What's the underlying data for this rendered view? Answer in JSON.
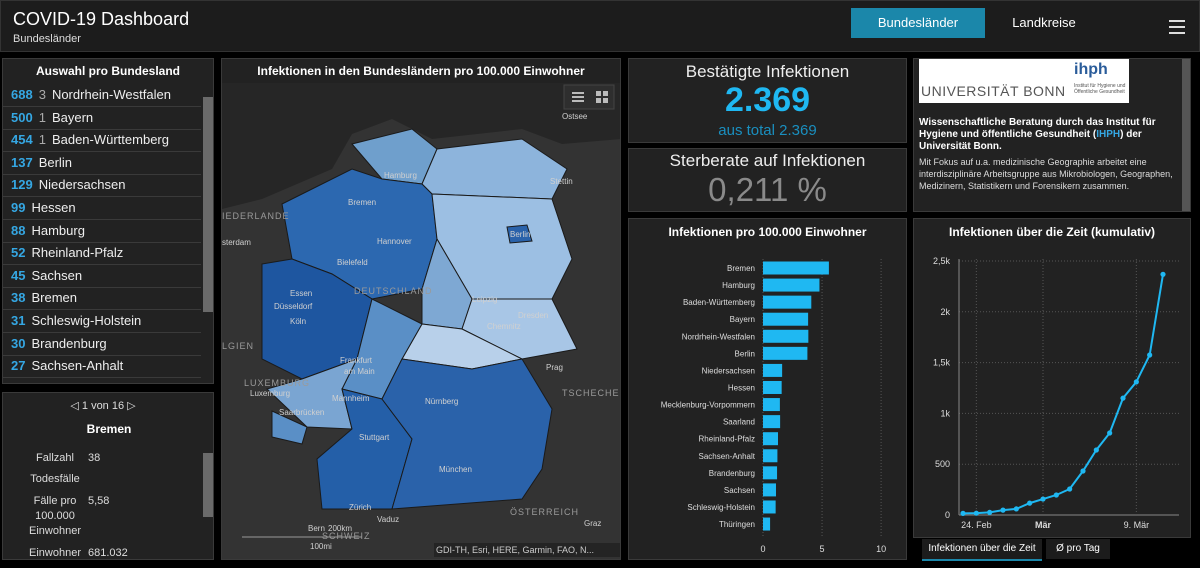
{
  "header": {
    "title": "COVID-19 Dashboard",
    "subtitle": "Bundesländer",
    "tabs": [
      "Bundesländer",
      "Landkreise"
    ]
  },
  "list": {
    "title": "Auswahl pro Bundesland",
    "items": [
      {
        "value": 688,
        "extra": 3,
        "name": "Nordrhein-Westfalen"
      },
      {
        "value": 500,
        "extra": 1,
        "name": "Bayern"
      },
      {
        "value": 454,
        "extra": 1,
        "name": "Baden-Württemberg"
      },
      {
        "value": 137,
        "name": "Berlin"
      },
      {
        "value": 129,
        "name": "Niedersachsen"
      },
      {
        "value": 99,
        "name": "Hessen"
      },
      {
        "value": 88,
        "name": "Hamburg"
      },
      {
        "value": 52,
        "name": "Rheinland-Pfalz"
      },
      {
        "value": 45,
        "name": "Sachsen"
      },
      {
        "value": 38,
        "name": "Bremen"
      },
      {
        "value": 31,
        "name": "Schleswig-Holstein"
      },
      {
        "value": 30,
        "name": "Brandenburg"
      },
      {
        "value": 27,
        "name": "Sachsen-Anhalt"
      }
    ]
  },
  "detail": {
    "pager": "1 von 16",
    "name": "Bremen",
    "fields": [
      {
        "label": "Fallzahl",
        "value": 38
      },
      {
        "label": "Todesfälle"
      },
      {
        "label": "Fälle pro 100.000 Einwohner",
        "value": "5,58"
      },
      {
        "label": "Einwohner",
        "value": "681.032"
      }
    ]
  },
  "map": {
    "title": "Infektionen in den Bundesländern pro 100.000 Einwohner",
    "labels": [
      "Ostsee",
      "Hamburg",
      "Stettin",
      "Bremen",
      "Hannover",
      "Berlin",
      "Bielefeld",
      "IEDERLANDE",
      "DEUTSCHLAND",
      "Essen",
      "Düsseldorf",
      "Leipzig",
      "Köln",
      "Dresden",
      "Chemnitz",
      "Frankfurt",
      "am Main",
      "Prag",
      "LUXEMBURG",
      "Luxemburg",
      "Mannheim",
      "Nürnberg",
      "TSCHECHE",
      "Saarbrücken",
      "Stuttgart",
      "München",
      "Zürich",
      "Vaduz",
      "ÖSTERREICH",
      "Graz",
      "SCHWEIZ",
      "Bern",
      "sterdam",
      "LGIEN"
    ],
    "scale": [
      "200km",
      "100mi"
    ],
    "attribution": "GDI-TH, Esri, HERE, Garmin, FAO, N..."
  },
  "cards": [
    {
      "title": "Bestätigte Infektionen",
      "value": "2.369",
      "subtitle": "aus total 2.369"
    },
    {
      "title": "Sterberate auf Infektionen",
      "value": "0,211 %"
    }
  ],
  "info": {
    "logo_left": "UNIVERSITÄT BONN",
    "logo_right": "ihph",
    "logo_caption": "Institut für Hygiene und Öffentliche Gesundheit",
    "lead": [
      "Wissenschaftliche Beratung durch das Institut für Hygiene und öffentliche Gesundheit (",
      "IHPH",
      ") der Universität Bonn."
    ],
    "text": "Mit Fokus auf u.a. medizinische Geographie arbeitet eine interdisziplinäre Arbeitsgruppe aus Mikrobiologen, Geographen, Medizinern, Statistikern und Forensikern zusammen."
  },
  "chart_data": [
    {
      "type": "hbar",
      "title": "Infektionen pro 100.000 Einwohner",
      "color": "#1fb8f2",
      "categories": [
        "Bremen",
        "Hamburg",
        "Baden-Württemberg",
        "Bayern",
        "Nordrhein-Westfalen",
        "Berlin",
        "Niedersachsen",
        "Hessen",
        "Mecklenburg-Vorpommern",
        "Saarland",
        "Rheinland-Pfalz",
        "Sachsen-Anhalt",
        "Brandenburg",
        "Sachsen",
        "Schleswig-Holstein",
        "Thüringen"
      ],
      "values": [
        5.58,
        4.78,
        4.09,
        3.82,
        3.84,
        3.76,
        1.62,
        1.58,
        1.43,
        1.45,
        1.27,
        1.22,
        1.19,
        1.1,
        1.07,
        0.6
      ],
      "xlim": [
        0,
        10.5
      ],
      "xticks": [
        0,
        5,
        10
      ],
      "grid": true
    },
    {
      "type": "line",
      "title": "Infektionen über die Zeit (kumulativ)",
      "color": "#1fb8f2",
      "categories": [
        null,
        "24. Feb",
        null,
        null,
        null,
        null,
        "Mär",
        null,
        null,
        null,
        null,
        null,
        null,
        "9. Mär",
        null,
        null
      ],
      "values": [
        16,
        18,
        26,
        48,
        60,
        117,
        157,
        197,
        256,
        433,
        640,
        807,
        1150,
        1310,
        1575,
        2369
      ],
      "ylim": [
        0,
        2500
      ],
      "yticks": [
        0,
        500,
        {
          "value": 1000,
          "label": "1k"
        },
        {
          "value": 1500,
          "label": "1,5k"
        },
        {
          "value": 2000,
          "label": "2k"
        },
        {
          "value": 2500,
          "label": "2,5k"
        }
      ],
      "grid": true
    }
  ],
  "chart_tabs": [
    "Infektionen über die Zeit",
    "Ø pro Tag"
  ]
}
